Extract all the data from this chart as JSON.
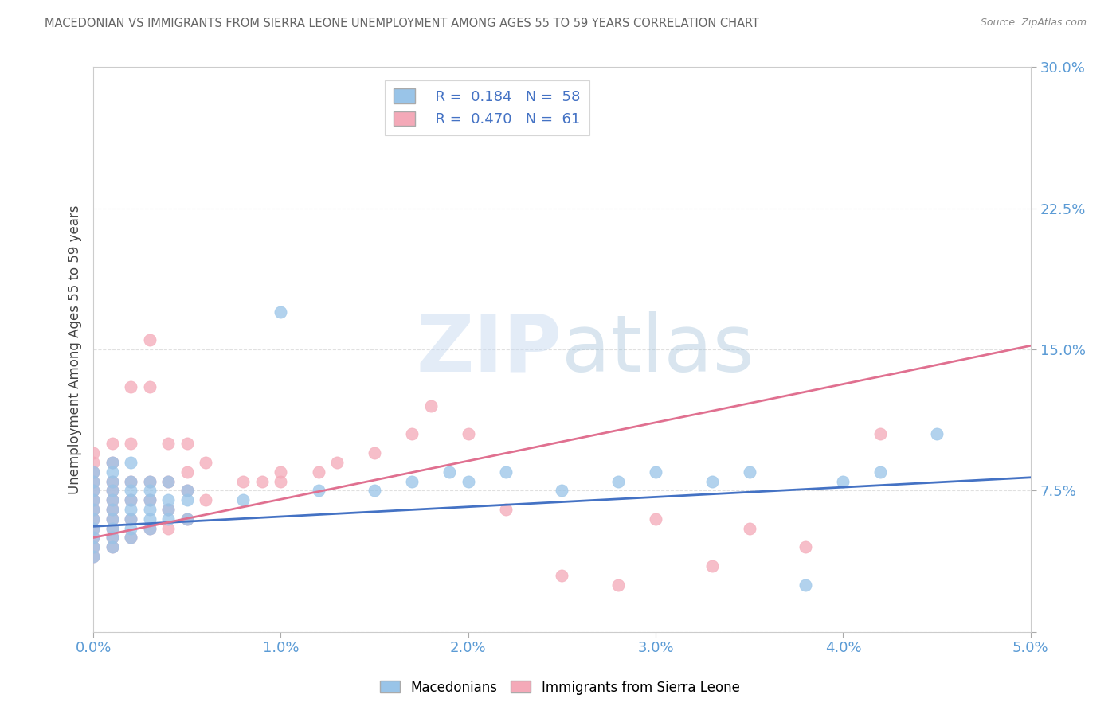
{
  "title": "MACEDONIAN VS IMMIGRANTS FROM SIERRA LEONE UNEMPLOYMENT AMONG AGES 55 TO 59 YEARS CORRELATION CHART",
  "source": "Source: ZipAtlas.com",
  "ylabel": "Unemployment Among Ages 55 to 59 years",
  "xlim": [
    0.0,
    0.05
  ],
  "ylim": [
    0.0,
    0.3
  ],
  "xticks": [
    0.0,
    0.01,
    0.02,
    0.03,
    0.04,
    0.05
  ],
  "xtick_labels": [
    "0.0%",
    "1.0%",
    "2.0%",
    "3.0%",
    "4.0%",
    "5.0%"
  ],
  "yticks": [
    0.0,
    0.075,
    0.15,
    0.225,
    0.3
  ],
  "ytick_labels": [
    "",
    "7.5%",
    "15.0%",
    "22.5%",
    "30.0%"
  ],
  "macedonian_color": "#99c4e8",
  "macedonian_edge_color": "#6aaad4",
  "sierra_leone_color": "#f4a9b8",
  "sierra_leone_edge_color": "#e07090",
  "macedonian_line_color": "#4472c4",
  "sierra_leone_line_color": "#e07090",
  "macedonian_R": 0.184,
  "macedonian_N": 58,
  "sierra_leone_R": 0.47,
  "sierra_leone_N": 61,
  "legend_label_1": "Macedonians",
  "legend_label_2": "Immigrants from Sierra Leone",
  "grid_color": "#dddddd",
  "title_color": "#666666",
  "axis_tick_color": "#5b9bd5",
  "watermark_color": "#ccddee",
  "macedonian_scatter_x": [
    0.0,
    0.0,
    0.0,
    0.0,
    0.0,
    0.0,
    0.0,
    0.0,
    0.0,
    0.0,
    0.001,
    0.001,
    0.001,
    0.001,
    0.001,
    0.001,
    0.001,
    0.001,
    0.001,
    0.001,
    0.002,
    0.002,
    0.002,
    0.002,
    0.002,
    0.002,
    0.002,
    0.002,
    0.003,
    0.003,
    0.003,
    0.003,
    0.003,
    0.003,
    0.004,
    0.004,
    0.004,
    0.004,
    0.005,
    0.005,
    0.005,
    0.008,
    0.01,
    0.012,
    0.015,
    0.017,
    0.019,
    0.02,
    0.022,
    0.025,
    0.028,
    0.03,
    0.033,
    0.035,
    0.038,
    0.04,
    0.042,
    0.045
  ],
  "macedonian_scatter_y": [
    0.04,
    0.045,
    0.05,
    0.055,
    0.06,
    0.065,
    0.07,
    0.075,
    0.08,
    0.085,
    0.045,
    0.05,
    0.055,
    0.06,
    0.065,
    0.07,
    0.075,
    0.08,
    0.085,
    0.09,
    0.05,
    0.055,
    0.06,
    0.065,
    0.07,
    0.075,
    0.08,
    0.09,
    0.055,
    0.06,
    0.065,
    0.07,
    0.075,
    0.08,
    0.06,
    0.065,
    0.07,
    0.08,
    0.06,
    0.07,
    0.075,
    0.07,
    0.17,
    0.075,
    0.075,
    0.08,
    0.085,
    0.08,
    0.085,
    0.075,
    0.08,
    0.085,
    0.08,
    0.085,
    0.025,
    0.08,
    0.085,
    0.105
  ],
  "sierra_leone_scatter_x": [
    0.0,
    0.0,
    0.0,
    0.0,
    0.0,
    0.0,
    0.0,
    0.0,
    0.0,
    0.0,
    0.0,
    0.0,
    0.001,
    0.001,
    0.001,
    0.001,
    0.001,
    0.001,
    0.001,
    0.001,
    0.001,
    0.001,
    0.002,
    0.002,
    0.002,
    0.002,
    0.002,
    0.002,
    0.003,
    0.003,
    0.003,
    0.003,
    0.003,
    0.004,
    0.004,
    0.004,
    0.004,
    0.005,
    0.005,
    0.005,
    0.005,
    0.006,
    0.006,
    0.008,
    0.009,
    0.01,
    0.01,
    0.012,
    0.013,
    0.015,
    0.017,
    0.018,
    0.02,
    0.022,
    0.025,
    0.028,
    0.03,
    0.033,
    0.035,
    0.038,
    0.042
  ],
  "sierra_leone_scatter_y": [
    0.04,
    0.045,
    0.05,
    0.055,
    0.06,
    0.065,
    0.07,
    0.075,
    0.08,
    0.085,
    0.09,
    0.095,
    0.045,
    0.05,
    0.055,
    0.06,
    0.065,
    0.07,
    0.075,
    0.08,
    0.09,
    0.1,
    0.05,
    0.06,
    0.07,
    0.08,
    0.1,
    0.13,
    0.055,
    0.07,
    0.08,
    0.13,
    0.155,
    0.055,
    0.065,
    0.08,
    0.1,
    0.06,
    0.075,
    0.085,
    0.1,
    0.07,
    0.09,
    0.08,
    0.08,
    0.08,
    0.085,
    0.085,
    0.09,
    0.095,
    0.105,
    0.12,
    0.105,
    0.065,
    0.03,
    0.025,
    0.06,
    0.035,
    0.055,
    0.045,
    0.105
  ],
  "mac_trend_x": [
    0.0,
    0.05
  ],
  "mac_trend_y": [
    0.056,
    0.082
  ],
  "sl_trend_x": [
    0.0,
    0.05
  ],
  "sl_trend_y": [
    0.05,
    0.152
  ]
}
